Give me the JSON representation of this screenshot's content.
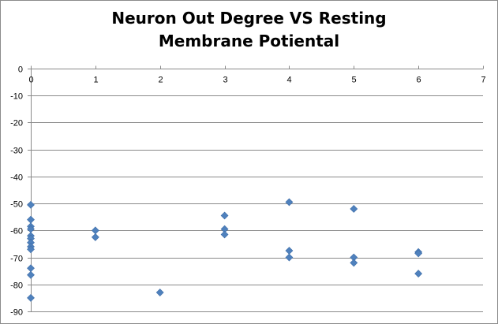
{
  "chart_data": {
    "type": "scatter",
    "title": "Neuron Out Degree VS Resting Membrane Potiental",
    "xlabel": "",
    "ylabel": "",
    "xlim": [
      0,
      7
    ],
    "ylim": [
      -90,
      0
    ],
    "x_ticks": [
      0,
      1,
      2,
      3,
      4,
      5,
      6,
      7
    ],
    "y_ticks": [
      0,
      -10,
      -20,
      -30,
      -40,
      -50,
      -60,
      -70,
      -80,
      -90
    ],
    "x_axis_position": "top",
    "grid": "horizontal major gridlines",
    "legend": "none",
    "marker": "diamond",
    "marker_color": "#4f81bd",
    "points": [
      {
        "x": 0,
        "y": -50.5
      },
      {
        "x": 0,
        "y": -56
      },
      {
        "x": 0,
        "y": -58.5
      },
      {
        "x": 0,
        "y": -59.5
      },
      {
        "x": 0,
        "y": -62
      },
      {
        "x": 0,
        "y": -63
      },
      {
        "x": 0,
        "y": -64.5
      },
      {
        "x": 0,
        "y": -66
      },
      {
        "x": 0,
        "y": -67
      },
      {
        "x": 0,
        "y": -74
      },
      {
        "x": 0,
        "y": -76.5
      },
      {
        "x": 0,
        "y": -85
      },
      {
        "x": 1,
        "y": -60
      },
      {
        "x": 1,
        "y": -62.5
      },
      {
        "x": 2,
        "y": -83
      },
      {
        "x": 3,
        "y": -54.5
      },
      {
        "x": 3,
        "y": -59.5
      },
      {
        "x": 3,
        "y": -61.5
      },
      {
        "x": 4,
        "y": -49.5
      },
      {
        "x": 4,
        "y": -67.5
      },
      {
        "x": 4,
        "y": -70
      },
      {
        "x": 5,
        "y": -52
      },
      {
        "x": 5,
        "y": -70
      },
      {
        "x": 5,
        "y": -72
      },
      {
        "x": 6,
        "y": -68
      },
      {
        "x": 6,
        "y": -68.5
      },
      {
        "x": 6,
        "y": -76
      }
    ]
  }
}
